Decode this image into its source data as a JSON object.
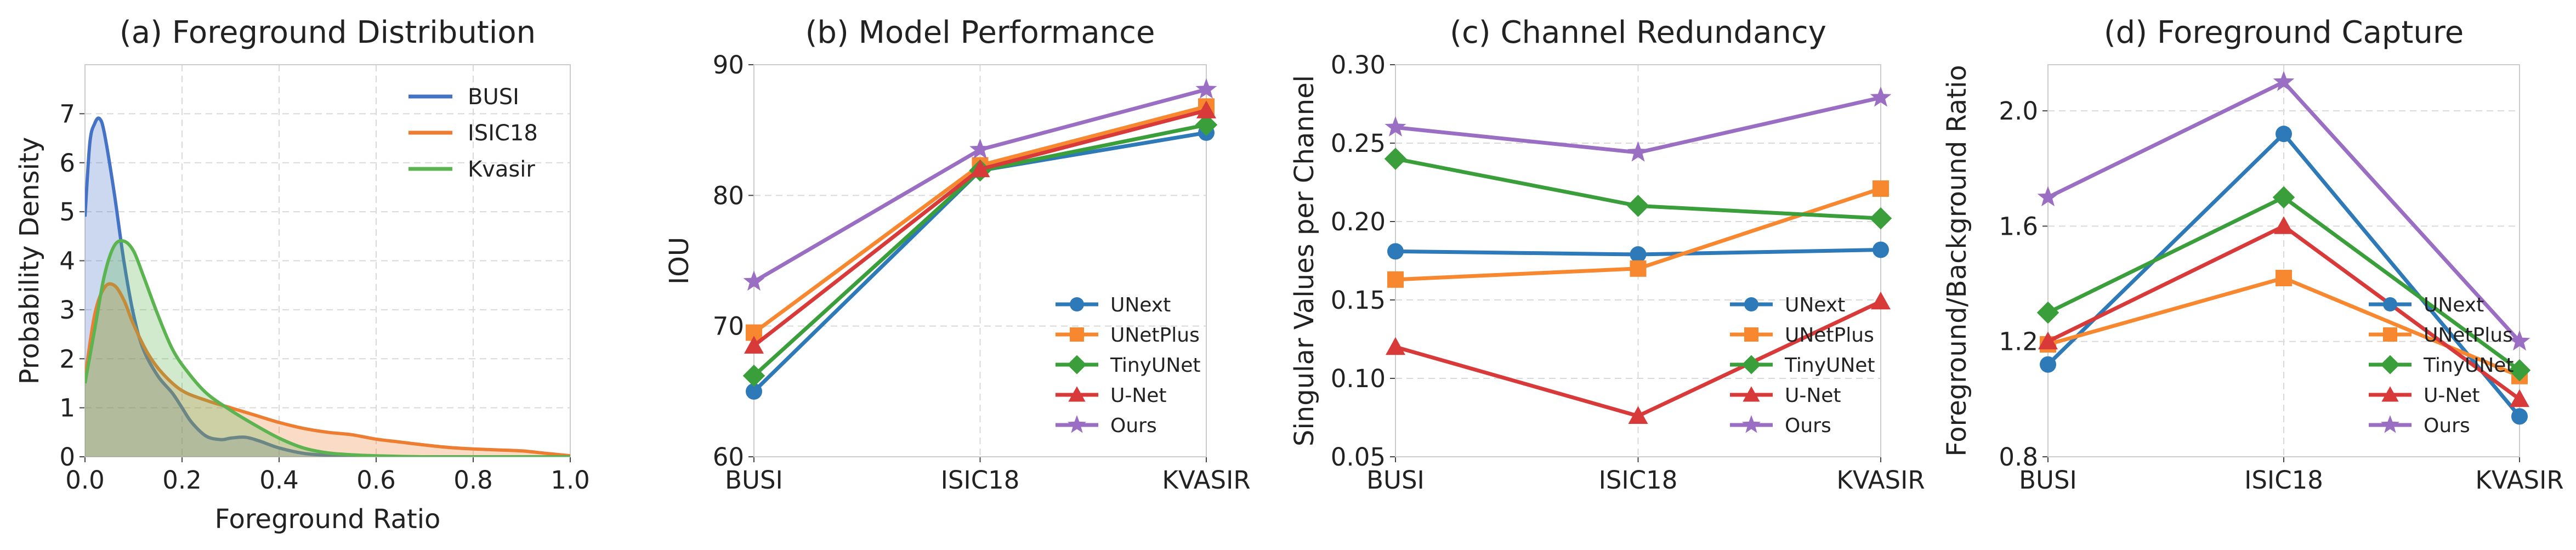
{
  "chart_data": [
    {
      "id": "a",
      "type": "area",
      "title": "(a) Foreground Distribution",
      "xlabel": "Foreground Ratio",
      "ylabel": "Probability Density",
      "xlim": [
        0,
        1
      ],
      "ylim": [
        0,
        8
      ],
      "xticks": [
        0.0,
        0.2,
        0.4,
        0.6,
        0.8,
        1.0
      ],
      "xtick_labels": [
        "0.0",
        "0.2",
        "0.4",
        "0.6",
        "0.8",
        "1.0"
      ],
      "yticks": [
        0,
        1,
        2,
        3,
        4,
        5,
        6,
        7
      ],
      "ytick_labels": [
        "0",
        "1",
        "2",
        "3",
        "4",
        "5",
        "6",
        "7"
      ],
      "legend_position": "top-right",
      "series": [
        {
          "name": "BUSI",
          "color": "#4472c4",
          "x": [
            0.0,
            0.01,
            0.02,
            0.03,
            0.04,
            0.06,
            0.08,
            0.1,
            0.12,
            0.15,
            0.18,
            0.2,
            0.22,
            0.25,
            0.28,
            0.3,
            0.33,
            0.36,
            0.4,
            0.45,
            0.5,
            0.55,
            0.6,
            0.7,
            0.8,
            0.9,
            1.0
          ],
          "y": [
            4.9,
            6.4,
            6.8,
            6.9,
            6.6,
            5.4,
            4.0,
            2.9,
            2.2,
            1.65,
            1.3,
            1.0,
            0.7,
            0.42,
            0.35,
            0.38,
            0.4,
            0.32,
            0.18,
            0.07,
            0.03,
            0.01,
            0.0,
            0.0,
            0.0,
            0.0,
            0.0
          ]
        },
        {
          "name": "ISIC18",
          "color": "#ed7d31",
          "x": [
            0.0,
            0.02,
            0.04,
            0.06,
            0.08,
            0.1,
            0.13,
            0.16,
            0.2,
            0.25,
            0.3,
            0.35,
            0.4,
            0.45,
            0.5,
            0.55,
            0.6,
            0.65,
            0.7,
            0.75,
            0.8,
            0.85,
            0.9,
            0.95,
            1.0
          ],
          "y": [
            1.6,
            2.9,
            3.45,
            3.5,
            3.2,
            2.7,
            2.1,
            1.7,
            1.35,
            1.15,
            1.0,
            0.85,
            0.7,
            0.58,
            0.5,
            0.45,
            0.36,
            0.3,
            0.24,
            0.19,
            0.16,
            0.14,
            0.12,
            0.07,
            0.02
          ]
        },
        {
          "name": "Kvasir",
          "color": "#5bb450",
          "x": [
            0.0,
            0.02,
            0.04,
            0.06,
            0.08,
            0.1,
            0.12,
            0.15,
            0.18,
            0.21,
            0.25,
            0.3,
            0.35,
            0.4,
            0.45,
            0.5,
            0.55,
            0.6,
            0.7,
            0.8,
            0.9,
            1.0
          ],
          "y": [
            1.5,
            2.6,
            3.7,
            4.3,
            4.4,
            4.2,
            3.7,
            2.9,
            2.2,
            1.75,
            1.3,
            0.95,
            0.65,
            0.38,
            0.18,
            0.08,
            0.04,
            0.02,
            0.0,
            0.0,
            0.0,
            0.0
          ]
        }
      ]
    },
    {
      "id": "b",
      "type": "line",
      "title": "(b) Model Performance",
      "xlabel": "",
      "ylabel": "IOU",
      "categories": [
        "BUSI",
        "ISIC18",
        "KVASIR"
      ],
      "ylim": [
        60,
        90
      ],
      "yticks": [
        60,
        70,
        80,
        90
      ],
      "ytick_labels": [
        "60",
        "70",
        "80",
        "90"
      ],
      "legend_position": "lower-right",
      "series": [
        {
          "name": "UNext",
          "color": "#2e7ab8",
          "marker": "circle",
          "values": [
            65.0,
            81.9,
            84.8
          ]
        },
        {
          "name": "UNetPlus",
          "color": "#f7882f",
          "marker": "square",
          "values": [
            69.5,
            82.3,
            86.8
          ]
        },
        {
          "name": "TinyUNet",
          "color": "#3a9e3a",
          "marker": "diamond",
          "values": [
            66.2,
            81.9,
            85.4
          ]
        },
        {
          "name": "U-Net",
          "color": "#d83a3a",
          "marker": "triangle",
          "values": [
            68.5,
            82.0,
            86.5
          ]
        },
        {
          "name": "Ours",
          "color": "#9a6ec2",
          "marker": "star",
          "values": [
            73.4,
            83.5,
            88.1
          ]
        }
      ]
    },
    {
      "id": "c",
      "type": "line",
      "title": "(c) Channel Redundancy",
      "xlabel": "",
      "ylabel": "Singular Values per Channel",
      "categories": [
        "BUSI",
        "ISIC18",
        "KVASIR"
      ],
      "ylim": [
        0.05,
        0.3
      ],
      "yticks": [
        0.05,
        0.1,
        0.15,
        0.2,
        0.25,
        0.3
      ],
      "ytick_labels": [
        "0.05",
        "0.10",
        "0.15",
        "0.20",
        "0.25",
        "0.30"
      ],
      "legend_position": "lower-right",
      "series": [
        {
          "name": "UNext",
          "color": "#2e7ab8",
          "marker": "circle",
          "values": [
            0.181,
            0.179,
            0.182
          ]
        },
        {
          "name": "UNetPlus",
          "color": "#f7882f",
          "marker": "square",
          "values": [
            0.163,
            0.17,
            0.221
          ]
        },
        {
          "name": "TinyUNet",
          "color": "#3a9e3a",
          "marker": "diamond",
          "values": [
            0.24,
            0.21,
            0.202
          ]
        },
        {
          "name": "U-Net",
          "color": "#d83a3a",
          "marker": "triangle",
          "values": [
            0.12,
            0.076,
            0.149
          ]
        },
        {
          "name": "Ours",
          "color": "#9a6ec2",
          "marker": "star",
          "values": [
            0.26,
            0.244,
            0.279
          ]
        }
      ]
    },
    {
      "id": "d",
      "type": "line",
      "title": "(d) Foreground Capture",
      "xlabel": "",
      "ylabel": "Foreground/Background Ratio",
      "categories": [
        "BUSI",
        "ISIC18",
        "KVASIR"
      ],
      "ylim": [
        0.8,
        2.16
      ],
      "yticks": [
        0.8,
        1.2,
        1.6,
        2.0
      ],
      "ytick_labels": [
        "0.8",
        "1.2",
        "1.6",
        "2.0"
      ],
      "legend_position": "lower-right",
      "series": [
        {
          "name": "UNext",
          "color": "#2e7ab8",
          "marker": "circle",
          "values": [
            1.12,
            1.92,
            0.94
          ]
        },
        {
          "name": "UNetPlus",
          "color": "#f7882f",
          "marker": "square",
          "values": [
            1.19,
            1.42,
            1.08
          ]
        },
        {
          "name": "TinyUNet",
          "color": "#3a9e3a",
          "marker": "diamond",
          "values": [
            1.3,
            1.7,
            1.1
          ]
        },
        {
          "name": "U-Net",
          "color": "#d83a3a",
          "marker": "triangle",
          "values": [
            1.2,
            1.6,
            1.0
          ]
        },
        {
          "name": "Ours",
          "color": "#9a6ec2",
          "marker": "star",
          "values": [
            1.7,
            2.1,
            1.2
          ]
        }
      ]
    }
  ]
}
